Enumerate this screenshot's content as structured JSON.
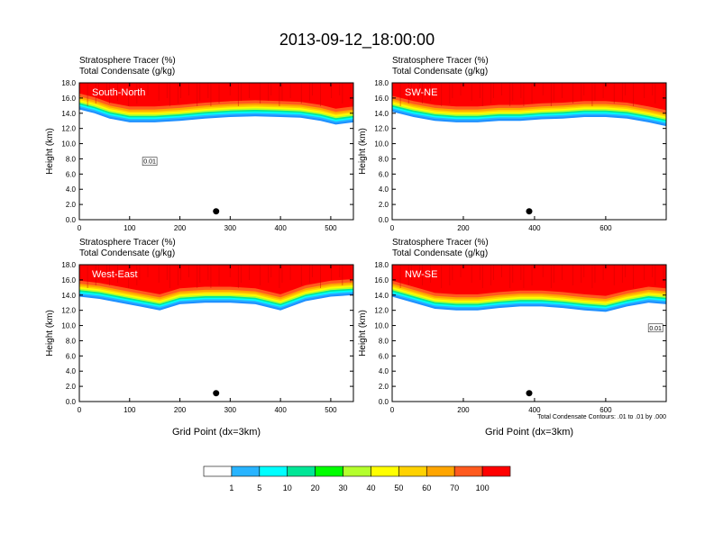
{
  "title": "2013-09-12_18:00:00",
  "colors": {
    "levels": [
      "#ffffff",
      "#1e90ff",
      "#28b4ff",
      "#00ffff",
      "#00e696",
      "#00ff00",
      "#b4ff2d",
      "#ffff00",
      "#ffd200",
      "#ffa500",
      "#ff5a1e",
      "#ff0000"
    ]
  },
  "colorbar": {
    "labels": [
      "1",
      "5",
      "10",
      "20",
      "30",
      "40",
      "50",
      "60",
      "70",
      "100"
    ]
  },
  "chart_data": [
    {
      "type": "heatmap",
      "panel": "South-North",
      "title_line1": "Stratosphere Tracer   (%)",
      "title_line2": "Total Condensate   (g/kg)",
      "ylabel": "Height (km)",
      "xlabel": "",
      "xlim": [
        0,
        545
      ],
      "ylim": [
        0,
        18
      ],
      "xticks": [
        "0",
        "100",
        "200",
        "300",
        "400",
        "500"
      ],
      "yticks": [
        "0.0",
        "2.0",
        "4.0",
        "6.0",
        "8.0",
        "10.0",
        "12.0",
        "14.0",
        "16.0",
        "18.0"
      ],
      "contour_label": "0.01",
      "marker_x": 272,
      "marker_y": 1.1,
      "tracer_boundary": {
        "x": [
          0,
          30,
          60,
          100,
          150,
          200,
          250,
          300,
          350,
          400,
          440,
          480,
          510,
          545
        ],
        "top_km": [
          14.5,
          14.0,
          13.3,
          12.8,
          12.8,
          13.0,
          13.3,
          13.5,
          13.6,
          13.5,
          13.4,
          13.0,
          12.5,
          12.8
        ]
      }
    },
    {
      "type": "heatmap",
      "panel": "SW-NE",
      "title_line1": "Stratosphere Tracer   (%)",
      "title_line2": "Total Condensate   (g/kg)",
      "ylabel": "Height (km)",
      "xlabel": "",
      "xlim": [
        0,
        770
      ],
      "ylim": [
        0,
        18
      ],
      "xticks": [
        "0",
        "200",
        "400",
        "600"
      ],
      "yticks": [
        "0.0",
        "2.0",
        "4.0",
        "6.0",
        "8.0",
        "10.0",
        "12.0",
        "14.0",
        "16.0",
        "18.0"
      ],
      "contour_label": "",
      "marker_x": 385,
      "marker_y": 1.1,
      "tracer_boundary": {
        "x": [
          0,
          60,
          120,
          180,
          240,
          300,
          360,
          420,
          480,
          540,
          600,
          660,
          720,
          770
        ],
        "top_km": [
          14.2,
          13.5,
          13.0,
          12.8,
          12.8,
          13.0,
          13.0,
          13.2,
          13.3,
          13.5,
          13.5,
          13.3,
          12.8,
          12.3
        ]
      }
    },
    {
      "type": "heatmap",
      "panel": "West-East",
      "title_line1": "Stratosphere Tracer   (%)",
      "title_line2": "Total Condensate   (g/kg)",
      "ylabel": "Height (km)",
      "xlabel": "Grid Point (dx=3km)",
      "xlim": [
        0,
        545
      ],
      "ylim": [
        0,
        18
      ],
      "xticks": [
        "0",
        "100",
        "200",
        "300",
        "400",
        "500"
      ],
      "yticks": [
        "0.0",
        "2.0",
        "4.0",
        "6.0",
        "8.0",
        "10.0",
        "12.0",
        "14.0",
        "16.0",
        "18.0"
      ],
      "contour_label": "",
      "marker_x": 272,
      "marker_y": 1.1,
      "tracer_boundary": {
        "x": [
          0,
          40,
          80,
          120,
          160,
          200,
          250,
          300,
          350,
          400,
          450,
          500,
          545
        ],
        "top_km": [
          13.8,
          13.5,
          13.0,
          12.5,
          12.0,
          12.8,
          13.0,
          13.0,
          12.8,
          12.0,
          13.2,
          13.8,
          14.0
        ]
      }
    },
    {
      "type": "heatmap",
      "panel": "NW-SE",
      "title_line1": "Stratosphere Tracer   (%)",
      "title_line2": "Total Condensate   (g/kg)",
      "ylabel": "Height (km)",
      "xlabel": "Grid Point (dx=3km)",
      "xlim": [
        0,
        770
      ],
      "ylim": [
        0,
        18
      ],
      "xticks": [
        "0",
        "200",
        "400",
        "600"
      ],
      "yticks": [
        "0.0",
        "2.0",
        "4.0",
        "6.0",
        "8.0",
        "10.0",
        "12.0",
        "14.0",
        "16.0",
        "18.0"
      ],
      "contour_label": "0.01",
      "footnote": "Total Condensate Contours: .01 to .01 by .000",
      "marker_x": 385,
      "marker_y": 1.1,
      "tracer_boundary": {
        "x": [
          0,
          60,
          120,
          180,
          240,
          300,
          360,
          420,
          480,
          540,
          600,
          660,
          720,
          770
        ],
        "top_km": [
          13.8,
          13.0,
          12.2,
          12.0,
          12.0,
          12.3,
          12.5,
          12.5,
          12.3,
          12.0,
          11.8,
          12.5,
          13.0,
          12.8
        ]
      }
    }
  ]
}
